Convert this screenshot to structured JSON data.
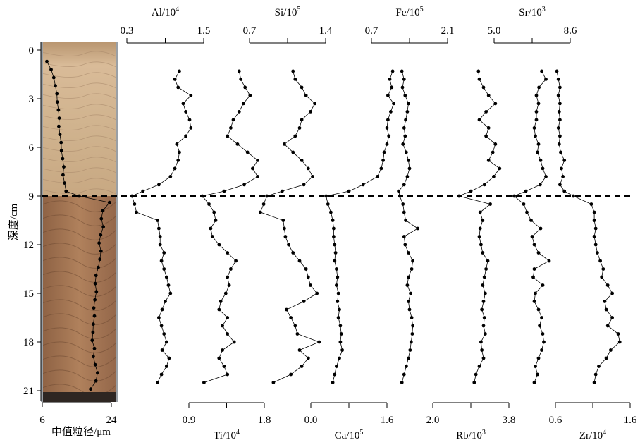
{
  "chart_data": {
    "type": "line",
    "orientation": "vertical-profile",
    "depth_axis": {
      "label": "深度/cm",
      "ticks": [
        0,
        3,
        6,
        9,
        12,
        15,
        18,
        21
      ],
      "range": [
        0,
        21.5
      ]
    },
    "boundary": {
      "depth": 9,
      "style": "dashed"
    },
    "core_image": {
      "description": "sediment core photo",
      "upper_color": "#cdb08c",
      "lower_color": "#a57652"
    },
    "series": [
      {
        "name": "中值粒径/μm",
        "label": "中值粒径/μm",
        "axis_position": "bottom",
        "ticks": [
          6,
          24
        ],
        "tick_labels": [
          "6",
          "24"
        ],
        "depth": [
          0.7,
          1.2,
          1.7,
          2.2,
          2.7,
          3.2,
          3.7,
          4.2,
          4.7,
          5.2,
          5.7,
          6.2,
          6.7,
          7.2,
          7.7,
          8.2,
          8.7,
          9.0,
          9.4,
          9.9,
          10.4,
          10.9,
          11.4,
          11.9,
          12.4,
          12.9,
          13.4,
          13.9,
          14.4,
          14.9,
          15.4,
          15.9,
          16.4,
          16.9,
          17.4,
          17.9,
          18.4,
          18.9,
          19.4,
          19.9,
          20.4,
          20.9
        ],
        "values": [
          7.2,
          8.3,
          9.0,
          9.4,
          9.8,
          9.9,
          10.2,
          10.4,
          10.3,
          10.6,
          10.9,
          11.0,
          11.3,
          11.6,
          11.4,
          11.8,
          12.2,
          15.6,
          23.5,
          21.8,
          21.4,
          21.9,
          21.2,
          20.8,
          21.3,
          21.0,
          20.6,
          20.0,
          19.8,
          20.1,
          19.7,
          19.4,
          19.6,
          19.3,
          19.2,
          19.0,
          19.6,
          19.3,
          19.8,
          20.4,
          20.0,
          18.6
        ]
      },
      {
        "name": "Al/10⁴",
        "label": "Al/10",
        "label_exp": "4",
        "axis_position": "top",
        "ticks": [
          0.3,
          1.5
        ],
        "tick_labels": [
          "0.3",
          "1.5"
        ],
        "depth": [
          1.3,
          1.8,
          2.3,
          2.8,
          3.3,
          3.8,
          4.3,
          4.8,
          5.3,
          5.8,
          6.3,
          6.8,
          7.3,
          7.8,
          8.3,
          8.7,
          9.0,
          9.5,
          10.0,
          10.5,
          11.0,
          11.5,
          12.0,
          12.5,
          13.0,
          13.5,
          14.0,
          14.5,
          15.0,
          15.5,
          16.0,
          16.5,
          17.0,
          17.5,
          18.0,
          18.5,
          19.0,
          19.5,
          20.0,
          20.5
        ],
        "values": [
          1.12,
          1.05,
          1.1,
          1.3,
          1.18,
          1.22,
          1.28,
          1.3,
          1.22,
          1.08,
          1.12,
          1.1,
          1.05,
          0.98,
          0.8,
          0.55,
          0.38,
          0.42,
          0.45,
          0.78,
          0.8,
          0.82,
          0.82,
          0.88,
          0.84,
          0.88,
          0.92,
          0.95,
          0.98,
          0.9,
          0.85,
          0.8,
          0.84,
          0.88,
          0.92,
          0.85,
          0.96,
          0.92,
          0.84,
          0.78
        ]
      },
      {
        "name": "Ti/10⁴",
        "label": "Ti/10",
        "label_exp": "4",
        "axis_position": "bottom",
        "ticks": [
          0.9,
          1.8
        ],
        "tick_labels": [
          "0.9",
          "1.8"
        ],
        "depth": [
          1.3,
          1.8,
          2.3,
          2.8,
          3.3,
          3.8,
          4.3,
          4.8,
          5.3,
          5.8,
          6.3,
          6.8,
          7.3,
          7.8,
          8.3,
          8.7,
          9.0,
          9.5,
          10.0,
          10.5,
          11.0,
          11.5,
          12.0,
          12.5,
          13.0,
          13.5,
          14.0,
          14.5,
          15.0,
          15.5,
          16.0,
          16.5,
          17.0,
          17.5,
          18.0,
          18.5,
          19.0,
          19.5,
          20.0,
          20.5
        ],
        "values": [
          1.5,
          1.52,
          1.57,
          1.63,
          1.55,
          1.5,
          1.43,
          1.4,
          1.36,
          1.48,
          1.6,
          1.72,
          1.66,
          1.72,
          1.56,
          1.32,
          1.06,
          1.14,
          1.2,
          1.22,
          1.16,
          1.18,
          1.26,
          1.36,
          1.46,
          1.4,
          1.36,
          1.38,
          1.34,
          1.28,
          1.26,
          1.36,
          1.3,
          1.36,
          1.44,
          1.3,
          1.26,
          1.32,
          1.36,
          1.08
        ]
      },
      {
        "name": "Si/10⁵",
        "label": "Si/10",
        "label_exp": "5",
        "axis_position": "top",
        "ticks": [
          0.7,
          1.4
        ],
        "tick_labels": [
          "0.7",
          "1.4"
        ],
        "depth": [
          1.3,
          1.8,
          2.3,
          2.8,
          3.3,
          3.8,
          4.3,
          4.8,
          5.3,
          5.8,
          6.3,
          6.8,
          7.3,
          7.8,
          8.3,
          8.7,
          9.0,
          9.5,
          10.0,
          10.5,
          11.0,
          11.5,
          12.0,
          12.5,
          13.0,
          13.5,
          14.0,
          14.5,
          15.0,
          15.5,
          16.0,
          16.5,
          17.0,
          17.5,
          18.0,
          18.5,
          19.0,
          19.5,
          20.0,
          20.5
        ],
        "values": [
          1.1,
          1.12,
          1.18,
          1.22,
          1.3,
          1.26,
          1.18,
          1.16,
          1.12,
          1.02,
          1.1,
          1.18,
          1.24,
          1.28,
          1.2,
          1.0,
          0.86,
          0.83,
          0.8,
          1.01,
          1.02,
          1.03,
          1.06,
          1.1,
          1.16,
          1.22,
          1.24,
          1.26,
          1.32,
          1.2,
          1.04,
          1.08,
          1.12,
          1.14,
          1.34,
          1.16,
          1.24,
          1.18,
          1.08,
          0.92
        ]
      },
      {
        "name": "Ca/10⁵",
        "label": "Ca/10",
        "label_exp": "5",
        "axis_position": "bottom",
        "ticks": [
          0.0,
          1.6
        ],
        "tick_labels": [
          "0.0",
          "1.6"
        ],
        "depth": [
          1.3,
          1.8,
          2.3,
          2.8,
          3.3,
          3.8,
          4.3,
          4.8,
          5.3,
          5.8,
          6.3,
          6.8,
          7.3,
          7.8,
          8.3,
          8.7,
          9.0,
          9.5,
          10.0,
          10.5,
          11.0,
          11.5,
          12.0,
          12.5,
          13.0,
          13.5,
          14.0,
          14.5,
          15.0,
          15.5,
          16.0,
          16.5,
          17.0,
          17.5,
          18.0,
          18.5,
          19.0,
          19.5,
          20.0,
          20.5
        ],
        "values": [
          1.72,
          1.66,
          1.7,
          1.62,
          1.74,
          1.68,
          1.62,
          1.6,
          1.64,
          1.6,
          1.54,
          1.52,
          1.48,
          1.4,
          1.1,
          0.8,
          0.32,
          0.36,
          0.42,
          0.46,
          0.48,
          0.48,
          0.5,
          0.52,
          0.5,
          0.54,
          0.56,
          0.54,
          0.58,
          0.56,
          0.6,
          0.58,
          0.62,
          0.64,
          0.62,
          0.66,
          0.6,
          0.54,
          0.5,
          0.46
        ]
      },
      {
        "name": "Fe/10⁵",
        "label": "Fe/10",
        "label_exp": "5",
        "axis_position": "top",
        "ticks": [
          0.7,
          2.1
        ],
        "tick_labels": [
          "0.7",
          "2.1"
        ],
        "depth": [
          1.3,
          1.8,
          2.3,
          2.8,
          3.3,
          3.8,
          4.3,
          4.8,
          5.3,
          5.8,
          6.3,
          6.8,
          7.3,
          7.8,
          8.3,
          8.7,
          9.0,
          9.5,
          10.0,
          10.5,
          11.0,
          11.5,
          12.0,
          12.5,
          13.0,
          13.5,
          14.0,
          14.5,
          15.0,
          15.5,
          16.0,
          16.5,
          17.0,
          17.5,
          18.0,
          18.5,
          19.0,
          19.5,
          20.0,
          20.5
        ],
        "values": [
          1.26,
          1.3,
          1.27,
          1.32,
          1.38,
          1.36,
          1.33,
          1.3,
          1.32,
          1.28,
          1.34,
          1.38,
          1.4,
          1.36,
          1.3,
          1.2,
          1.22,
          1.28,
          1.3,
          1.33,
          1.55,
          1.3,
          1.32,
          1.38,
          1.46,
          1.44,
          1.38,
          1.36,
          1.42,
          1.38,
          1.4,
          1.44,
          1.46,
          1.45,
          1.43,
          1.41,
          1.38,
          1.34,
          1.3,
          1.26
        ]
      },
      {
        "name": "Rb/10³",
        "label": "Rb/10",
        "label_exp": "3",
        "axis_position": "bottom",
        "ticks": [
          2.0,
          3.8
        ],
        "tick_labels": [
          "2.0",
          "3.8"
        ],
        "depth": [
          1.3,
          1.8,
          2.3,
          2.8,
          3.3,
          3.8,
          4.3,
          4.8,
          5.3,
          5.8,
          6.3,
          6.8,
          7.3,
          7.8,
          8.3,
          8.7,
          9.0,
          9.5,
          10.0,
          10.5,
          11.0,
          11.5,
          12.0,
          12.5,
          13.0,
          13.5,
          14.0,
          14.5,
          15.0,
          15.5,
          16.0,
          16.5,
          17.0,
          17.5,
          18.0,
          18.5,
          19.0,
          19.5,
          20.0,
          20.5
        ],
        "values": [
          3.08,
          3.1,
          3.2,
          3.32,
          3.48,
          3.26,
          3.1,
          3.32,
          3.26,
          3.48,
          3.42,
          3.32,
          3.58,
          3.44,
          3.22,
          2.9,
          2.62,
          3.36,
          3.12,
          3.18,
          3.12,
          3.1,
          3.14,
          3.18,
          3.3,
          3.26,
          3.22,
          3.18,
          3.24,
          3.2,
          3.16,
          3.22,
          3.2,
          3.24,
          3.14,
          3.16,
          3.2,
          3.1,
          3.02,
          2.98
        ]
      },
      {
        "name": "Sr/10³",
        "label": "Sr/10",
        "label_exp": "3",
        "axis_position": "top",
        "ticks": [
          5.0,
          8.6
        ],
        "tick_labels": [
          "5.0",
          "8.6"
        ],
        "depth": [
          1.3,
          1.8,
          2.3,
          2.8,
          3.3,
          3.8,
          4.3,
          4.8,
          5.3,
          5.8,
          6.3,
          6.8,
          7.3,
          7.8,
          8.3,
          8.7,
          9.0,
          9.5,
          10.0,
          10.5,
          11.0,
          11.5,
          12.0,
          12.5,
          13.0,
          13.5,
          14.0,
          14.5,
          15.0,
          15.5,
          16.0,
          16.5,
          17.0,
          17.5,
          18.0,
          18.5,
          19.0,
          19.5,
          20.0,
          20.5
        ],
        "values": [
          7.25,
          7.45,
          7.12,
          7.0,
          7.1,
          7.0,
          7.0,
          6.9,
          6.95,
          7.1,
          7.05,
          7.2,
          7.3,
          7.45,
          7.18,
          6.5,
          5.95,
          6.4,
          6.55,
          6.75,
          7.2,
          6.8,
          6.9,
          7.1,
          7.6,
          6.9,
          6.85,
          7.3,
          6.95,
          6.9,
          7.1,
          7.25,
          7.15,
          7.3,
          7.35,
          7.25,
          7.1,
          6.95,
          7.05,
          6.9
        ]
      },
      {
        "name": "Zr/10⁴",
        "label": "Zr/10",
        "label_exp": "4",
        "axis_position": "bottom",
        "ticks": [
          0.6,
          1.6
        ],
        "tick_labels": [
          "0.6",
          "1.6"
        ],
        "depth": [
          1.3,
          1.8,
          2.3,
          2.8,
          3.3,
          3.8,
          4.3,
          4.8,
          5.3,
          5.8,
          6.3,
          6.8,
          7.3,
          7.8,
          8.3,
          8.7,
          9.0,
          9.5,
          10.0,
          10.5,
          11.0,
          11.5,
          12.0,
          12.5,
          13.0,
          13.5,
          14.0,
          14.5,
          15.0,
          15.5,
          16.0,
          16.5,
          17.0,
          17.5,
          18.0,
          18.5,
          19.0,
          19.5,
          20.0,
          20.5
        ],
        "values": [
          0.62,
          0.64,
          0.66,
          0.64,
          0.66,
          0.65,
          0.66,
          0.64,
          0.66,
          0.65,
          0.67,
          0.72,
          0.68,
          0.7,
          0.66,
          0.72,
          0.84,
          1.08,
          1.12,
          1.12,
          1.14,
          1.12,
          1.14,
          1.16,
          1.2,
          1.24,
          1.22,
          1.3,
          1.36,
          1.26,
          1.28,
          1.36,
          1.3,
          1.44,
          1.46,
          1.34,
          1.28,
          1.18,
          1.14,
          1.12
        ]
      }
    ]
  }
}
